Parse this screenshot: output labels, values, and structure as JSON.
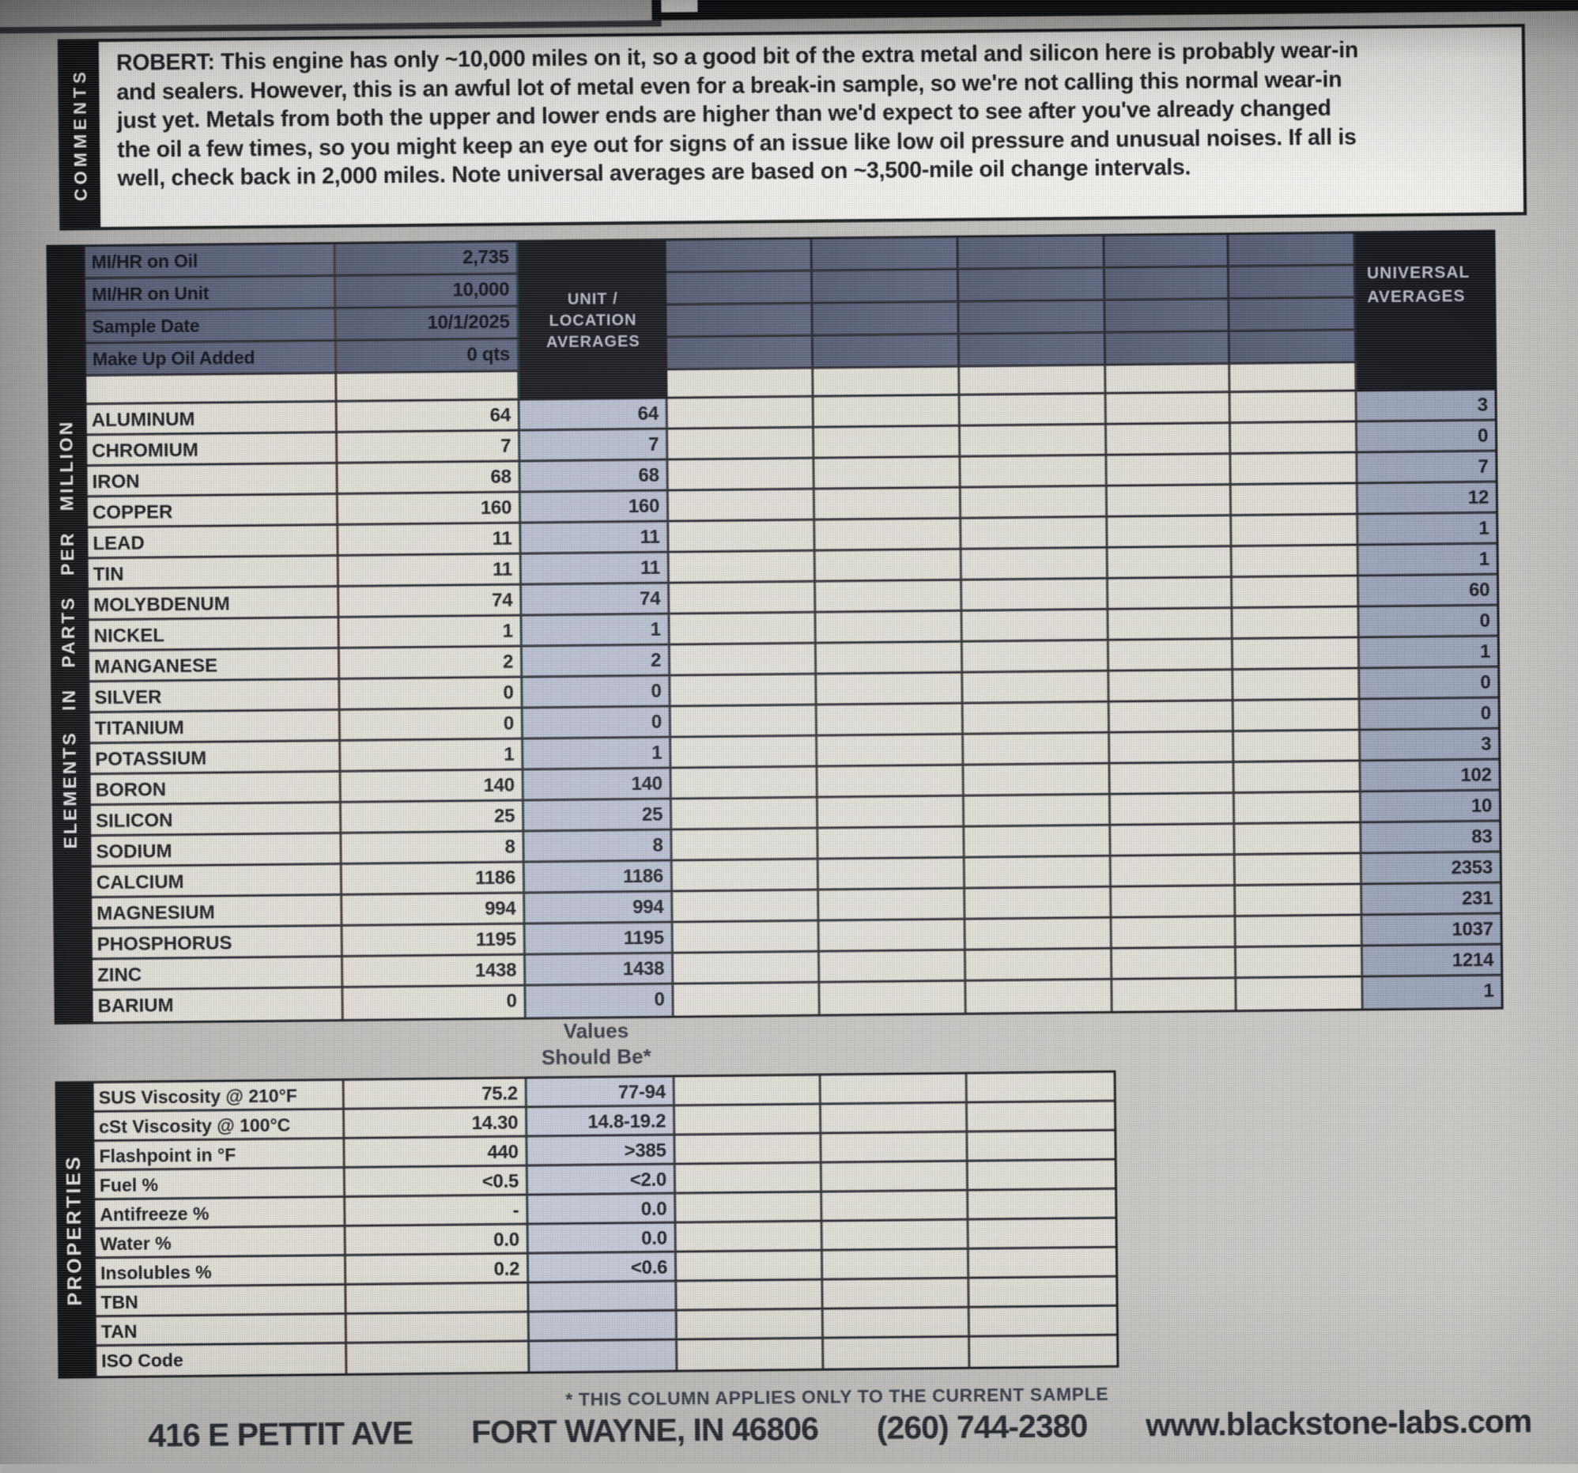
{
  "comments": {
    "side_label": "COMMENTS",
    "text": "ROBERT:  This engine has only ~10,000 miles on it, so a good bit of the extra metal and silicon here is probably wear-in and sealers. However, this is an awful lot of metal even for a break-in sample, so we're not calling this normal wear-in just yet. Metals from both the upper and lower ends are higher than we'd expect to see after you've already changed the oil a few times, so you might keep an eye out for signs of an issue like low oil pressure and unusual noises. If all is well, check back in 2,000 miles. Note universal averages are based on ~3,500-mile oil change intervals."
  },
  "elements_table": {
    "side_label": "ELEMENTS IN PARTS PER MILLION",
    "info_rows": [
      {
        "label": "MI/HR on Oil",
        "value": "2,735"
      },
      {
        "label": "MI/HR on Unit",
        "value": "10,000"
      },
      {
        "label": "Sample Date",
        "value": "10/1/2025"
      },
      {
        "label": "Make Up Oil Added",
        "value": "0 qts"
      }
    ],
    "unit_avg_header_lines": [
      "UNIT /",
      "LOCATION",
      "AVERAGES"
    ],
    "universal_avg_header_lines": [
      "UNIVERSAL",
      "AVERAGES"
    ],
    "rows": [
      {
        "name": "ALUMINUM",
        "current": "64",
        "unit_avg": "64",
        "universal_avg": "3"
      },
      {
        "name": "CHROMIUM",
        "current": "7",
        "unit_avg": "7",
        "universal_avg": "0"
      },
      {
        "name": "IRON",
        "current": "68",
        "unit_avg": "68",
        "universal_avg": "7"
      },
      {
        "name": "COPPER",
        "current": "160",
        "unit_avg": "160",
        "universal_avg": "12"
      },
      {
        "name": "LEAD",
        "current": "11",
        "unit_avg": "11",
        "universal_avg": "1"
      },
      {
        "name": "TIN",
        "current": "11",
        "unit_avg": "11",
        "universal_avg": "1"
      },
      {
        "name": "MOLYBDENUM",
        "current": "74",
        "unit_avg": "74",
        "universal_avg": "60"
      },
      {
        "name": "NICKEL",
        "current": "1",
        "unit_avg": "1",
        "universal_avg": "0"
      },
      {
        "name": "MANGANESE",
        "current": "2",
        "unit_avg": "2",
        "universal_avg": "1"
      },
      {
        "name": "SILVER",
        "current": "0",
        "unit_avg": "0",
        "universal_avg": "0"
      },
      {
        "name": "TITANIUM",
        "current": "0",
        "unit_avg": "0",
        "universal_avg": "0"
      },
      {
        "name": "POTASSIUM",
        "current": "1",
        "unit_avg": "1",
        "universal_avg": "3"
      },
      {
        "name": "BORON",
        "current": "140",
        "unit_avg": "140",
        "universal_avg": "102"
      },
      {
        "name": "SILICON",
        "current": "25",
        "unit_avg": "25",
        "universal_avg": "10"
      },
      {
        "name": "SODIUM",
        "current": "8",
        "unit_avg": "8",
        "universal_avg": "83"
      },
      {
        "name": "CALCIUM",
        "current": "1186",
        "unit_avg": "1186",
        "universal_avg": "2353"
      },
      {
        "name": "MAGNESIUM",
        "current": "994",
        "unit_avg": "994",
        "universal_avg": "231"
      },
      {
        "name": "PHOSPHORUS",
        "current": "1195",
        "unit_avg": "1195",
        "universal_avg": "1037"
      },
      {
        "name": "ZINC",
        "current": "1438",
        "unit_avg": "1438",
        "universal_avg": "1214"
      },
      {
        "name": "BARIUM",
        "current": "0",
        "unit_avg": "0",
        "universal_avg": "1"
      }
    ]
  },
  "values_should_be": {
    "line1": "Values",
    "line2": "Should Be*"
  },
  "properties_table": {
    "side_label": "PROPERTIES",
    "rows": [
      {
        "name": "SUS Viscosity @ 210°F",
        "current": "75.2",
        "should_be": "77-94"
      },
      {
        "name": "cSt Viscosity @ 100°C",
        "current": "14.30",
        "should_be": "14.8-19.2"
      },
      {
        "name": "Flashpoint in °F",
        "current": "440",
        "should_be": ">385"
      },
      {
        "name": "Fuel %",
        "current": "<0.5",
        "should_be": "<2.0"
      },
      {
        "name": "Antifreeze %",
        "current": "-",
        "should_be": "0.0"
      },
      {
        "name": "Water %",
        "current": "0.0",
        "should_be": "0.0"
      },
      {
        "name": "Insolubles %",
        "current": "0.2",
        "should_be": "<0.6"
      },
      {
        "name": "TBN",
        "current": "",
        "should_be": ""
      },
      {
        "name": "TAN",
        "current": "",
        "should_be": ""
      },
      {
        "name": "ISO Code",
        "current": "",
        "should_be": ""
      }
    ]
  },
  "footnote": "* THIS COLUMN APPLIES ONLY TO THE CURRENT SAMPLE",
  "footer": {
    "address": "416 E PETTIT AVE",
    "city_state": "FORT WAYNE, IN 46806",
    "phone": "(260) 744-2380",
    "website": "www.blackstone-labs.com"
  },
  "colors": {
    "header_slate": "#59607a",
    "black_header": "#15161c",
    "row_light": "#dedcd3",
    "unit_avg_col": "#b5bbcc",
    "universal_col": "#99a1b7",
    "should_be_col": "#c2c6d3"
  }
}
